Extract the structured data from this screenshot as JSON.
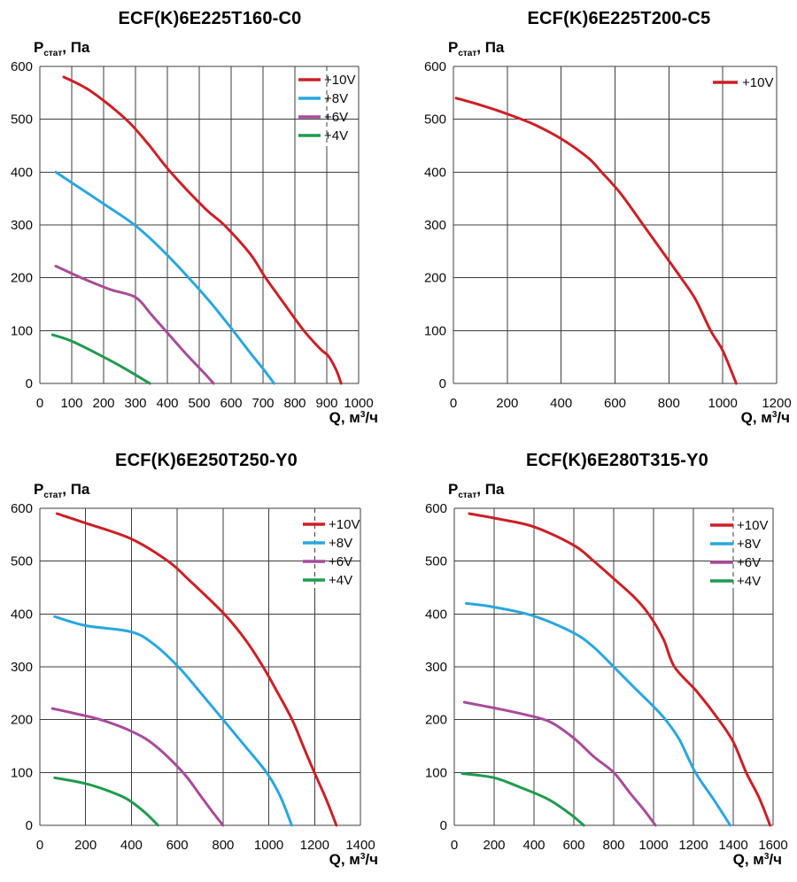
{
  "page": {
    "background": "#ffffff"
  },
  "colors": {
    "grid": "#3d3d3d",
    "text": "#000000",
    "v10": "#cb2026",
    "v8": "#29a7de",
    "v6": "#a84b9a",
    "v4": "#1f9b4e"
  },
  "chart_data": [
    {
      "type": "line",
      "title": "ECF(K)6E225T160-C0",
      "ylabel": {
        "main": "P",
        "sub": "стат",
        "rest": ", Па"
      },
      "xlabel": {
        "pre": "Q, м",
        "sup": "3",
        "post": "/ч"
      },
      "xlim": [
        0,
        1000
      ],
      "ylim": [
        0,
        600
      ],
      "x_ticks": [
        0,
        100,
        200,
        300,
        400,
        500,
        600,
        700,
        800,
        900,
        1000
      ],
      "y_ticks": [
        0,
        100,
        200,
        300,
        400,
        500,
        600
      ],
      "grid": true,
      "legend_position": "top-right",
      "dashed_gridline_x": 900,
      "series": [
        {
          "name": "+10V",
          "color": "#cb2026",
          "points": [
            [
              75,
              580
            ],
            [
              160,
              553
            ],
            [
              270,
              500
            ],
            [
              340,
              453
            ],
            [
              410,
              400
            ],
            [
              520,
              330
            ],
            [
              578,
              300
            ],
            [
              660,
              245
            ],
            [
              708,
              200
            ],
            [
              770,
              148
            ],
            [
              828,
              100
            ],
            [
              880,
              65
            ],
            [
              905,
              52
            ],
            [
              930,
              25
            ],
            [
              945,
              0
            ]
          ]
        },
        {
          "name": "+8V",
          "color": "#29a7de",
          "points": [
            [
              50,
              400
            ],
            [
              120,
              372
            ],
            [
              200,
              340
            ],
            [
              297,
              300
            ],
            [
              380,
              255
            ],
            [
              467,
              200
            ],
            [
              540,
              150
            ],
            [
              606,
              100
            ],
            [
              660,
              58
            ],
            [
              700,
              28
            ],
            [
              735,
              0
            ]
          ]
        },
        {
          "name": "+6V",
          "color": "#a84b9a",
          "points": [
            [
              50,
              222
            ],
            [
              130,
              200
            ],
            [
              220,
              178
            ],
            [
              300,
              163
            ],
            [
              350,
              130
            ],
            [
              394,
              100
            ],
            [
              460,
              55
            ],
            [
              512,
              22
            ],
            [
              545,
              0
            ]
          ]
        },
        {
          "name": "+4V",
          "color": "#1f9b4e",
          "points": [
            [
              40,
              92
            ],
            [
              100,
              80
            ],
            [
              200,
              50
            ],
            [
              270,
              27
            ],
            [
              345,
              0
            ]
          ]
        }
      ]
    },
    {
      "type": "line",
      "title": "ECF(K)6E225T200-C5",
      "ylabel": {
        "main": "P",
        "sub": "стат",
        "rest": ", Па"
      },
      "xlabel": {
        "pre": "Q, м",
        "sup": "3",
        "post": "/ч"
      },
      "xlim": [
        0,
        1200
      ],
      "ylim": [
        0,
        600
      ],
      "x_ticks": [
        0,
        200,
        400,
        600,
        800,
        1000,
        1200
      ],
      "y_ticks": [
        0,
        100,
        200,
        300,
        400,
        500,
        600
      ],
      "grid": true,
      "legend_position": "top-right",
      "dashed_gridline_x": null,
      "series": [
        {
          "name": "+10V",
          "color": "#cb2026",
          "points": [
            [
              10,
              540
            ],
            [
              100,
              527
            ],
            [
              200,
              510
            ],
            [
              300,
              490
            ],
            [
              400,
              463
            ],
            [
              500,
              427
            ],
            [
              550,
              400
            ],
            [
              620,
              360
            ],
            [
              705,
              300
            ],
            [
              775,
              250
            ],
            [
              845,
              200
            ],
            [
              900,
              158
            ],
            [
              955,
              100
            ],
            [
              1000,
              62
            ],
            [
              1050,
              0
            ]
          ]
        }
      ]
    },
    {
      "type": "line",
      "title": "ECF(K)6E250T250-Y0",
      "ylabel": {
        "main": "P",
        "sub": "стат",
        "rest": ", Па"
      },
      "xlabel": {
        "pre": "Q, м",
        "sup": "3",
        "post": "/ч"
      },
      "xlim": [
        0,
        1400
      ],
      "ylim": [
        0,
        600
      ],
      "x_ticks": [
        0,
        200,
        400,
        600,
        800,
        1000,
        1200,
        1400
      ],
      "y_ticks": [
        0,
        100,
        200,
        300,
        400,
        500,
        600
      ],
      "grid": true,
      "legend_position": "top-right",
      "dashed_gridline_x": 1200,
      "series": [
        {
          "name": "+10V",
          "color": "#cb2026",
          "points": [
            [
              75,
              590
            ],
            [
              200,
              572
            ],
            [
              400,
              542
            ],
            [
              560,
              500
            ],
            [
              650,
              465
            ],
            [
              805,
              400
            ],
            [
              900,
              350
            ],
            [
              975,
              300
            ],
            [
              1040,
              250
            ],
            [
              1102,
              200
            ],
            [
              1150,
              150
            ],
            [
              1199,
              100
            ],
            [
              1250,
              50
            ],
            [
              1295,
              0
            ]
          ]
        },
        {
          "name": "+8V",
          "color": "#29a7de",
          "points": [
            [
              65,
              395
            ],
            [
              200,
              378
            ],
            [
              400,
              366
            ],
            [
              500,
              342
            ],
            [
              605,
              300
            ],
            [
              700,
              252
            ],
            [
              800,
              200
            ],
            [
              900,
              148
            ],
            [
              990,
              100
            ],
            [
              1050,
              55
            ],
            [
              1100,
              0
            ]
          ]
        },
        {
          "name": "+6V",
          "color": "#a84b9a",
          "points": [
            [
              55,
              221
            ],
            [
              150,
              212
            ],
            [
              265,
              200
            ],
            [
              400,
              178
            ],
            [
              500,
              152
            ],
            [
              625,
              100
            ],
            [
              700,
              57
            ],
            [
              760,
              22
            ],
            [
              800,
              0
            ]
          ]
        },
        {
          "name": "+4V",
          "color": "#1f9b4e",
          "points": [
            [
              65,
              90
            ],
            [
              200,
              79
            ],
            [
              300,
              65
            ],
            [
              380,
              50
            ],
            [
              460,
              24
            ],
            [
              516,
              0
            ]
          ]
        }
      ]
    },
    {
      "type": "line",
      "title": "ECF(K)6E280T315-Y0",
      "ylabel": {
        "main": "P",
        "sub": "стат",
        "rest": ", Па"
      },
      "xlabel": {
        "pre": "Q, м",
        "sup": "3",
        "post": "/ч"
      },
      "xlim": [
        0,
        1600
      ],
      "ylim": [
        0,
        600
      ],
      "x_ticks": [
        0,
        200,
        400,
        600,
        800,
        1000,
        1200,
        1400,
        1600
      ],
      "y_ticks": [
        0,
        100,
        200,
        300,
        400,
        500,
        600
      ],
      "grid": true,
      "legend_position": "top-right",
      "dashed_gridline_x": 1400,
      "series": [
        {
          "name": "+10V",
          "color": "#cb2026",
          "points": [
            [
              75,
              590
            ],
            [
              220,
              580
            ],
            [
              400,
              565
            ],
            [
              600,
              530
            ],
            [
              700,
              500
            ],
            [
              800,
              467
            ],
            [
              900,
              433
            ],
            [
              975,
              400
            ],
            [
              1050,
              352
            ],
            [
              1105,
              300
            ],
            [
              1220,
              252
            ],
            [
              1327,
              200
            ],
            [
              1400,
              158
            ],
            [
              1465,
              100
            ],
            [
              1530,
              52
            ],
            [
              1585,
              0
            ]
          ]
        },
        {
          "name": "+8V",
          "color": "#29a7de",
          "points": [
            [
              60,
              420
            ],
            [
              200,
              413
            ],
            [
              400,
              396
            ],
            [
              600,
              364
            ],
            [
              700,
              337
            ],
            [
              800,
              300
            ],
            [
              900,
              262
            ],
            [
              1000,
              225
            ],
            [
              1060,
              200
            ],
            [
              1130,
              162
            ],
            [
              1210,
              100
            ],
            [
              1300,
              50
            ],
            [
              1385,
              0
            ]
          ]
        },
        {
          "name": "+6V",
          "color": "#a84b9a",
          "points": [
            [
              50,
              233
            ],
            [
              200,
              222
            ],
            [
              350,
              210
            ],
            [
              480,
              196
            ],
            [
              600,
              165
            ],
            [
              700,
              130
            ],
            [
              800,
              100
            ],
            [
              880,
              62
            ],
            [
              950,
              30
            ],
            [
              1010,
              0
            ]
          ]
        },
        {
          "name": "+4V",
          "color": "#1f9b4e",
          "points": [
            [
              40,
              98
            ],
            [
              200,
              90
            ],
            [
              330,
              72
            ],
            [
              468,
              50
            ],
            [
              580,
              22
            ],
            [
              650,
              0
            ]
          ]
        }
      ]
    }
  ]
}
